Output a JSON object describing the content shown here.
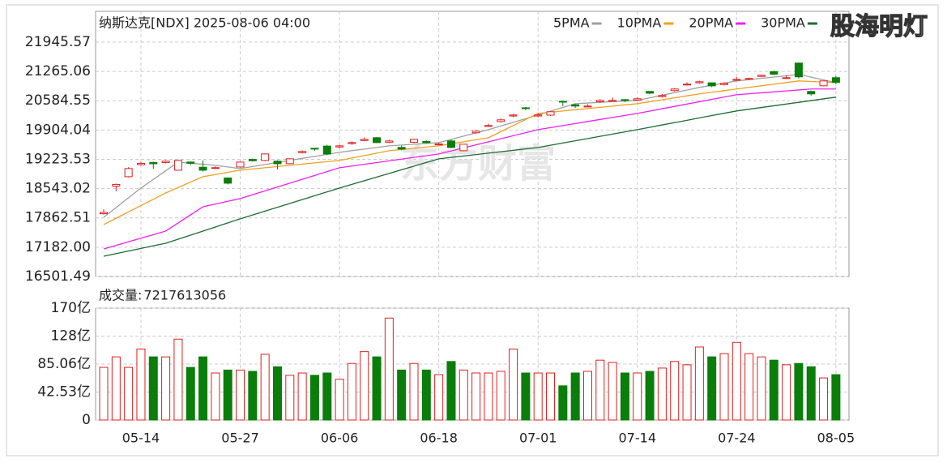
{
  "brand": "股海明灯",
  "chart_data": [
    {
      "type": "candlestick",
      "title": "纳斯达克[NDX] 2025-08-06 04:00",
      "watermark": "东方财富",
      "up_color": "#e02020",
      "down_color": "#0a7d0a",
      "ylim": [
        16501.49,
        22660
      ],
      "yticks": [
        21945.57,
        21265.06,
        20584.55,
        19904.04,
        19223.53,
        18543.02,
        17862.51,
        {
          "value": 17182,
          "label": "17182.00"
        },
        16501.49
      ],
      "grid": true,
      "ohlc": [
        [
          17960,
          18060,
          17940,
          17991
        ],
        [
          18600,
          18660,
          18480,
          18640
        ],
        [
          18820,
          19040,
          18800,
          19009
        ],
        [
          19100,
          19160,
          19080,
          19130
        ],
        [
          19150,
          19170,
          19000,
          19120
        ],
        [
          19150,
          19200,
          19130,
          19180
        ],
        [
          18970,
          19210,
          18960,
          19200
        ],
        [
          19160,
          19170,
          19090,
          19130
        ],
        [
          19040,
          19200,
          18940,
          18971
        ],
        [
          19020,
          19060,
          19000,
          19030
        ],
        [
          18790,
          18800,
          18640,
          18669
        ],
        [
          19046,
          19170,
          19030,
          19159
        ],
        [
          19220,
          19240,
          19170,
          19190
        ],
        [
          19197,
          19360,
          19180,
          19348
        ],
        [
          19180,
          19200,
          18990,
          19120
        ],
        [
          19122,
          19250,
          19110,
          19235
        ],
        [
          19380,
          19430,
          19360,
          19404
        ],
        [
          19480,
          19490,
          19420,
          19461
        ],
        [
          19530,
          19560,
          19320,
          19348
        ],
        [
          19510,
          19560,
          19480,
          19536
        ],
        [
          19590,
          19640,
          19560,
          19612
        ],
        [
          19660,
          19730,
          19640,
          19687
        ],
        [
          19725,
          19740,
          19600,
          19612
        ],
        [
          19620,
          19680,
          19600,
          19650
        ],
        [
          19500,
          19540,
          19430,
          19461
        ],
        [
          19620,
          19700,
          19600,
          19687
        ],
        [
          19640,
          19660,
          19590,
          19612
        ],
        [
          19560,
          19600,
          19550,
          19580
        ],
        [
          19650,
          19680,
          19480,
          19499
        ],
        [
          19423,
          19580,
          19410,
          19574
        ],
        [
          19840,
          19900,
          19820,
          19876
        ],
        [
          19990,
          20050,
          19980,
          20008
        ],
        [
          20100,
          20170,
          20080,
          20140
        ],
        [
          20230,
          20280,
          20200,
          20253
        ],
        [
          20420,
          20440,
          20360,
          20403
        ],
        [
          20230,
          20300,
          20200,
          20253
        ],
        [
          20250,
          20340,
          20230,
          20328
        ],
        [
          20570,
          20580,
          20460,
          20554
        ],
        [
          20490,
          20510,
          20420,
          20460
        ],
        [
          20440,
          20500,
          20430,
          20460
        ],
        [
          20560,
          20620,
          20540,
          20592
        ],
        [
          20570,
          20660,
          20560,
          20592
        ],
        [
          20610,
          20620,
          20550,
          20592
        ],
        [
          20600,
          20660,
          20580,
          20630
        ],
        [
          20800,
          20810,
          20740,
          20760
        ],
        [
          20680,
          20740,
          20660,
          20705
        ],
        [
          20820,
          20880,
          20800,
          20856
        ],
        [
          20950,
          21010,
          20940,
          20969
        ],
        [
          21000,
          21050,
          20980,
          21025
        ],
        [
          21000,
          21010,
          20900,
          20930
        ],
        [
          20960,
          21010,
          20940,
          20988
        ],
        [
          21060,
          21130,
          21050,
          21080
        ],
        [
          21080,
          21120,
          21060,
          21101
        ],
        [
          21150,
          21190,
          21130,
          21176
        ],
        [
          21260,
          21280,
          21180,
          21200
        ],
        [
          21100,
          21170,
          21090,
          21120
        ],
        [
          21459,
          21470,
          21100,
          21139
        ],
        [
          20800,
          20820,
          20700,
          20743
        ],
        [
          20931,
          21050,
          20920,
          21044
        ],
        [
          21120,
          21160,
          20970,
          21010
        ]
      ],
      "series": [
        {
          "name": "5PMA",
          "color": "#a0a0a0",
          "values": [
            17877,
            18103,
            18330,
            18556,
            18757,
            18958,
            19159,
            19134,
            19109,
            19084,
            19047,
            19009,
            19056,
            19103,
            19150,
            19198,
            19245,
            19292,
            19339,
            19386,
            19424,
            19461,
            19499,
            19536,
            19555,
            19574,
            19593,
            19612,
            19687,
            19763,
            19838,
            19913,
            19998,
            20083,
            20168,
            20253,
            20341,
            20428,
            20516,
            20531,
            20546,
            20562,
            20577,
            20592,
            20652,
            20712,
            20773,
            20833,
            20893,
            20943,
            20994,
            21044,
            21074,
            21104,
            21135,
            21165,
            21195,
            21132,
            21069,
            21006
          ]
        },
        {
          "name": "10PMA",
          "color": "#f0a020",
          "values": [
            17708,
            17855,
            18002,
            18149,
            18296,
            18443,
            18569,
            18694,
            18820,
            18870,
            18921,
            18971,
            18999,
            19027,
            19056,
            19084,
            19112,
            19141,
            19169,
            19197,
            19254,
            19310,
            19367,
            19423,
            19451,
            19480,
            19508,
            19536,
            19583,
            19631,
            19678,
            19725,
            19866,
            20008,
            20149,
            20290,
            20318,
            20346,
            20375,
            20403,
            20431,
            20459,
            20488,
            20516,
            20561,
            20607,
            20652,
            20698,
            20743,
            20781,
            20818,
            20856,
            20894,
            20931,
            20969,
            21006,
            21044,
            21031,
            21019,
            21006
          ]
        },
        {
          "name": "20PMA",
          "color": "#f020f0",
          "values": [
            17142,
            17225,
            17308,
            17391,
            17474,
            17557,
            17745,
            17934,
            18122,
            18185,
            18248,
            18311,
            18401,
            18490,
            18580,
            18669,
            18759,
            18848,
            18938,
            19027,
            19067,
            19107,
            19147,
            19188,
            19228,
            19268,
            19308,
            19348,
            19419,
            19489,
            19560,
            19630,
            19701,
            19772,
            19842,
            19913,
            19960,
            20007,
            20054,
            20102,
            20149,
            20196,
            20243,
            20290,
            20344,
            20399,
            20453,
            20507,
            20561,
            20616,
            20670,
            20724,
            20746,
            20768,
            20790,
            20812,
            20834,
            20856,
            20856,
            20856
          ]
        },
        {
          "name": "30PMA",
          "color": "#1f6b35",
          "values": [
            16973,
            17033,
            17093,
            17154,
            17214,
            17274,
            17368,
            17463,
            17557,
            17651,
            17746,
            17840,
            17930,
            18019,
            18109,
            18198,
            18288,
            18377,
            18467,
            18556,
            18641,
            18726,
            18811,
            18896,
            18980,
            19065,
            19150,
            19235,
            19268,
            19301,
            19334,
            19367,
            19400,
            19433,
            19466,
            19499,
            19551,
            19602,
            19654,
            19706,
            19758,
            19810,
            19861,
            19913,
            19967,
            20022,
            20076,
            20130,
            20185,
            20239,
            20293,
            20347,
            20387,
            20427,
            20467,
            20507,
            20547,
            20587,
            20627,
            20667
          ]
        }
      ]
    },
    {
      "type": "bar",
      "label": "成交量:",
      "latest": 7217613056,
      "ylim": [
        0,
        170.12
      ],
      "yticks": [
        {
          "value": 170.12,
          "label": "170亿"
        },
        {
          "value": 127.59,
          "label": "128亿"
        },
        {
          "value": 85.06,
          "label": "85.06亿"
        },
        {
          "value": 42.53,
          "label": "42.53亿"
        },
        0
      ],
      "grid": true,
      "categories": [
        null,
        null,
        null,
        "05-14",
        null,
        null,
        null,
        null,
        null,
        null,
        null,
        "05-27",
        null,
        null,
        null,
        null,
        null,
        null,
        null,
        "06-06",
        null,
        null,
        null,
        null,
        null,
        null,
        null,
        "06-18",
        null,
        null,
        null,
        null,
        null,
        null,
        null,
        "07-01",
        null,
        null,
        null,
        null,
        null,
        null,
        null,
        "07-14",
        null,
        null,
        null,
        null,
        null,
        null,
        null,
        "07-24",
        null,
        null,
        null,
        null,
        null,
        null,
        null,
        "08-05"
      ],
      "values": [
        80.1,
        96,
        80,
        108,
        96,
        96,
        123,
        80,
        96,
        71.5,
        76,
        76,
        74,
        100,
        81,
        68,
        71.5,
        68,
        71.5,
        62,
        86,
        104,
        96,
        155,
        76,
        86,
        76,
        69,
        89,
        76,
        71.5,
        71.5,
        74,
        108,
        71.5,
        71.5,
        71.5,
        52,
        71.5,
        74,
        91,
        87.5,
        71.5,
        71.5,
        74,
        79,
        89,
        84,
        111,
        96,
        101,
        118,
        101,
        96,
        91,
        84,
        86,
        81,
        64,
        69
      ]
    }
  ]
}
